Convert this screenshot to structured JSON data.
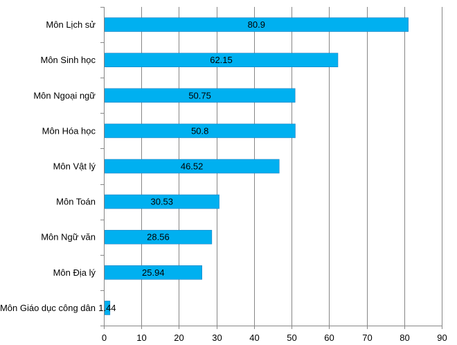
{
  "chart_data": {
    "type": "bar",
    "orientation": "horizontal",
    "title": "",
    "xlabel": "",
    "ylabel": "",
    "xlim": [
      0,
      90
    ],
    "x_ticks": [
      0,
      10,
      20,
      30,
      40,
      50,
      60,
      70,
      80,
      90
    ],
    "grid": true,
    "categories": [
      "Môn Lịch sử",
      "Môn Sinh học",
      "Môn Ngoại ngữ",
      "Môn Hóa học",
      "Môn Vật lý",
      "Môn Toán",
      "Môn Ngữ văn",
      "Môn Địa lý",
      "Môn Giáo dục công dân"
    ],
    "values": [
      80.9,
      62.15,
      50.75,
      50.8,
      46.52,
      30.53,
      28.56,
      25.94,
      1.44
    ],
    "value_labels": [
      "80.9",
      "62.15",
      "50.75",
      "50.8",
      "46.52",
      "30.53",
      "28.56",
      "25.94",
      "1.44"
    ],
    "bar_color": "#00b0f0",
    "bar_border_color": "#1f7fc0",
    "grid_color": "#868686"
  }
}
